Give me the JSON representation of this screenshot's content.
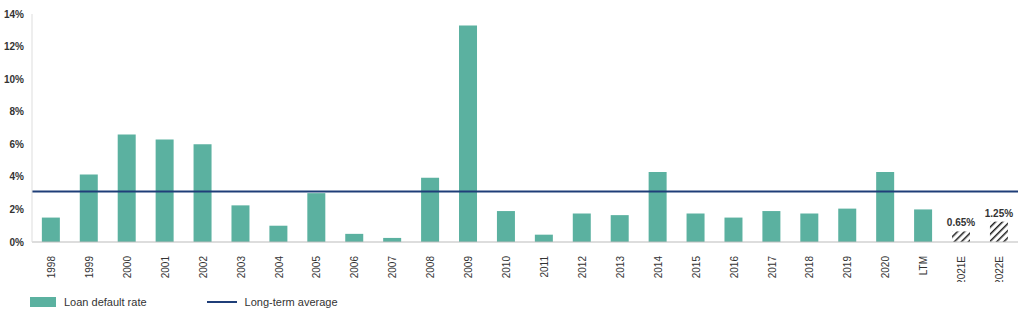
{
  "chart_data": {
    "type": "bar",
    "categories": [
      "1998",
      "1999",
      "2000",
      "2001",
      "2002",
      "2003",
      "2004",
      "2005",
      "2006",
      "2007",
      "2008",
      "2009",
      "2010",
      "2011",
      "2012",
      "2013",
      "2014",
      "2015",
      "2016",
      "2017",
      "2018",
      "2019",
      "2020",
      "LTM",
      "2021E",
      "2022E"
    ],
    "series": [
      {
        "name": "Loan default rate",
        "color": "#5bb1a0",
        "values": [
          1.5,
          4.15,
          6.6,
          6.3,
          6.0,
          2.25,
          1.0,
          3.0,
          0.5,
          0.25,
          3.95,
          13.3,
          1.9,
          0.45,
          1.75,
          1.65,
          4.3,
          1.75,
          1.5,
          1.9,
          1.75,
          2.05,
          4.3,
          2.0,
          0.65,
          1.25
        ],
        "value_labels": [
          null,
          null,
          null,
          null,
          null,
          null,
          null,
          null,
          null,
          null,
          null,
          null,
          null,
          null,
          null,
          null,
          null,
          null,
          null,
          null,
          null,
          null,
          null,
          null,
          "0.65%",
          "1.25%"
        ]
      }
    ],
    "long_term_average": {
      "name": "Long-term average",
      "value": 3.1,
      "color": "#1f3e78"
    },
    "ylim": [
      0,
      14
    ],
    "yticks": [
      {
        "value": 0,
        "label": "0%"
      },
      {
        "value": 2,
        "label": "2%"
      },
      {
        "value": 4,
        "label": "4%"
      },
      {
        "value": 6,
        "label": "6%"
      },
      {
        "value": 8,
        "label": "8%"
      },
      {
        "value": 10,
        "label": "10%"
      },
      {
        "value": 12,
        "label": "12%"
      },
      {
        "value": 14,
        "label": "14%"
      }
    ],
    "grid": false,
    "data_labels": true,
    "legend": "bottom-left"
  }
}
